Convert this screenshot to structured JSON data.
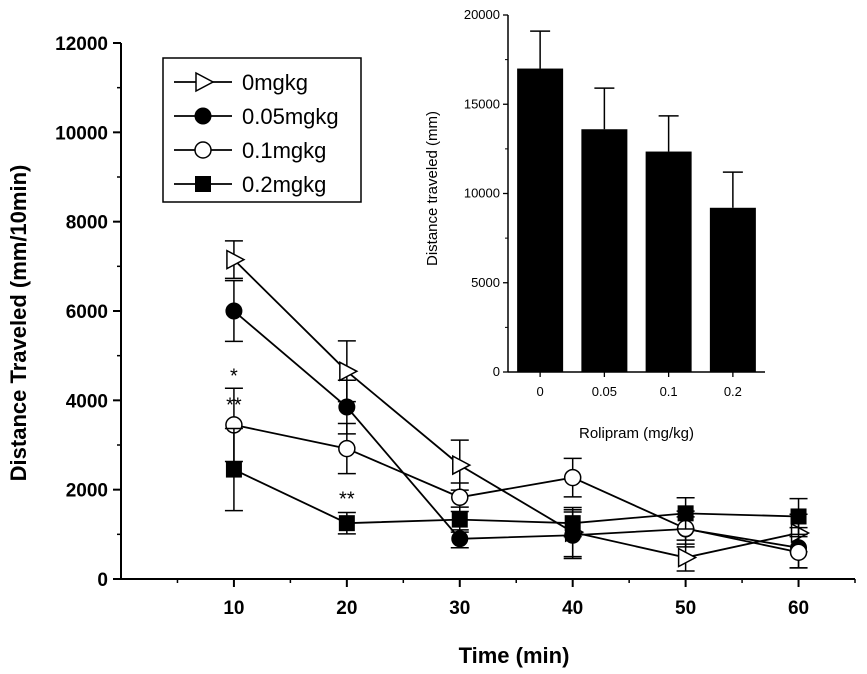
{
  "chart_data": [
    {
      "type": "line",
      "xlabel": "Time (min)",
      "ylabel": "Distance Traveled (mm/10min)",
      "x": [
        10,
        20,
        30,
        40,
        50,
        60
      ],
      "xticks": [
        "10",
        "20",
        "30",
        "40",
        "50",
        "60"
      ],
      "xlim": [
        0,
        65
      ],
      "ylim": [
        0,
        12000
      ],
      "yticks": [
        "0",
        "2000",
        "4000",
        "6000",
        "8000",
        "10000",
        "12000"
      ],
      "legend": "top-left",
      "grid": false,
      "series": [
        {
          "name": "0mgkg",
          "marker": "open-triangle-right",
          "values": [
            7150,
            4650,
            2550,
            1050,
            480,
            1030
          ],
          "errors": [
            420,
            680,
            560,
            550,
            300,
            420
          ]
        },
        {
          "name": "0.05mgkg",
          "marker": "filled-circle",
          "values": [
            6000,
            3850,
            900,
            980,
            1120,
            700
          ],
          "errors": [
            680,
            600,
            200,
            520,
            400,
            450
          ]
        },
        {
          "name": "0.1mgkg",
          "marker": "open-circle",
          "values": [
            3450,
            2920,
            1830,
            2270,
            1130,
            600
          ],
          "errors": [
            820,
            560,
            320,
            430,
            260,
            350
          ]
        },
        {
          "name": "0.2mgkg",
          "marker": "filled-square",
          "values": [
            2450,
            1250,
            1330,
            1250,
            1470,
            1400
          ],
          "errors": [
            920,
            240,
            280,
            300,
            350,
            400
          ]
        }
      ],
      "annotations": [
        {
          "text": "*",
          "x": 10,
          "y": 4400
        },
        {
          "text": "**",
          "x": 10,
          "y": 3750
        },
        {
          "text": "**",
          "x": 20,
          "y": 1650
        }
      ]
    },
    {
      "type": "bar",
      "xlabel": "Rolipram (mg/kg)",
      "ylabel": "Distance traveled (mm)",
      "categories": [
        "0",
        "0.05",
        "0.1",
        "0.2"
      ],
      "values": [
        17000,
        13600,
        12350,
        9200
      ],
      "errors": [
        2100,
        2300,
        2000,
        2000
      ],
      "ylim": [
        0,
        20000
      ],
      "yticks": [
        "0",
        "5000",
        "10000",
        "15000",
        "20000"
      ],
      "bar_color": "#000000"
    }
  ]
}
